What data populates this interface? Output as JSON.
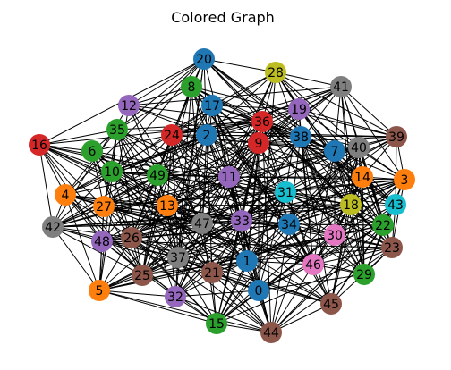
{
  "title": "Colored Graph",
  "palette": {
    "blue": "#1f77b4",
    "orange": "#ff7f0e",
    "green": "#2ca02c",
    "red": "#d62728",
    "purple": "#9467bd",
    "brown": "#8c564b",
    "pink": "#e377c2",
    "gray": "#7f7f7f",
    "olive": "#bcbd22",
    "cyan": "#17becf"
  },
  "nodes": [
    {
      "id": "0",
      "color": "blue"
    },
    {
      "id": "1",
      "color": "blue"
    },
    {
      "id": "2",
      "color": "blue"
    },
    {
      "id": "3",
      "color": "orange"
    },
    {
      "id": "4",
      "color": "orange"
    },
    {
      "id": "5",
      "color": "orange"
    },
    {
      "id": "6",
      "color": "green"
    },
    {
      "id": "7",
      "color": "blue"
    },
    {
      "id": "8",
      "color": "green"
    },
    {
      "id": "9",
      "color": "red"
    },
    {
      "id": "10",
      "color": "green"
    },
    {
      "id": "11",
      "color": "purple"
    },
    {
      "id": "12",
      "color": "purple"
    },
    {
      "id": "13",
      "color": "orange"
    },
    {
      "id": "14",
      "color": "orange"
    },
    {
      "id": "15",
      "color": "green"
    },
    {
      "id": "16",
      "color": "red"
    },
    {
      "id": "17",
      "color": "blue"
    },
    {
      "id": "18",
      "color": "olive"
    },
    {
      "id": "19",
      "color": "purple"
    },
    {
      "id": "20",
      "color": "blue"
    },
    {
      "id": "21",
      "color": "brown"
    },
    {
      "id": "22",
      "color": "green"
    },
    {
      "id": "23",
      "color": "brown"
    },
    {
      "id": "24",
      "color": "red"
    },
    {
      "id": "25",
      "color": "brown"
    },
    {
      "id": "26",
      "color": "brown"
    },
    {
      "id": "27",
      "color": "orange"
    },
    {
      "id": "28",
      "color": "olive"
    },
    {
      "id": "29",
      "color": "green"
    },
    {
      "id": "30",
      "color": "pink"
    },
    {
      "id": "31",
      "color": "cyan"
    },
    {
      "id": "32",
      "color": "purple"
    },
    {
      "id": "33",
      "color": "purple"
    },
    {
      "id": "34",
      "color": "blue"
    },
    {
      "id": "35",
      "color": "green"
    },
    {
      "id": "36",
      "color": "red"
    },
    {
      "id": "37",
      "color": "gray"
    },
    {
      "id": "38",
      "color": "blue"
    },
    {
      "id": "39",
      "color": "brown"
    },
    {
      "id": "40",
      "color": "gray"
    },
    {
      "id": "41",
      "color": "gray"
    },
    {
      "id": "42",
      "color": "gray"
    },
    {
      "id": "43",
      "color": "cyan"
    },
    {
      "id": "44",
      "color": "brown"
    },
    {
      "id": "45",
      "color": "brown"
    },
    {
      "id": "46",
      "color": "pink"
    },
    {
      "id": "47",
      "color": "gray"
    },
    {
      "id": "48",
      "color": "purple"
    },
    {
      "id": "49",
      "color": "green"
    }
  ]
}
